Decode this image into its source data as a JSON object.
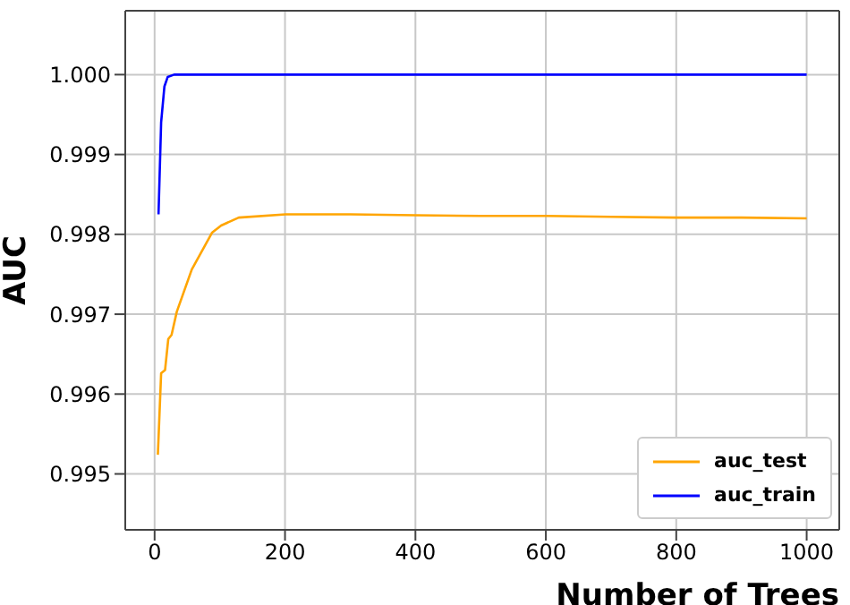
{
  "chart_data": {
    "type": "line",
    "xlabel": "Number of Trees",
    "ylabel": "AUC",
    "xlim": [
      -45,
      1050
    ],
    "xticks": [
      0,
      200,
      400,
      600,
      800,
      1000
    ],
    "ylim": [
      0.9943,
      1.0008
    ],
    "yticks": [
      {
        "value": 0.995,
        "label": "0.995"
      },
      {
        "value": 0.996,
        "label": "0.996"
      },
      {
        "value": 0.997,
        "label": "0.997"
      },
      {
        "value": 0.998,
        "label": "0.998"
      },
      {
        "value": 0.999,
        "label": "0.999"
      },
      {
        "value": 1.0,
        "label": "1.000"
      }
    ],
    "grid": true,
    "legend": "bottom right",
    "marker": "none",
    "line_style": "solid",
    "series": [
      {
        "name": "auc_test",
        "color": "#ffa500",
        "x": [
          5,
          10,
          16,
          21,
          26,
          34,
          57,
          88,
          102,
          129,
          201,
          300,
          400,
          500,
          600,
          700,
          800,
          900,
          1000
        ],
        "values": [
          0.99524,
          0.99626,
          0.9963,
          0.99669,
          0.99674,
          0.99703,
          0.99756,
          0.99802,
          0.99811,
          0.99821,
          0.99825,
          0.99825,
          0.99824,
          0.99823,
          0.99823,
          0.99822,
          0.99821,
          0.99821,
          0.9982
        ]
      },
      {
        "name": "auc_train",
        "color": "#0000ff",
        "x": [
          6,
          10,
          15,
          20,
          30,
          100,
          1000
        ],
        "values": [
          0.99825,
          0.9994,
          0.99985,
          0.99997,
          1.0,
          1.0,
          1.0
        ]
      }
    ]
  }
}
